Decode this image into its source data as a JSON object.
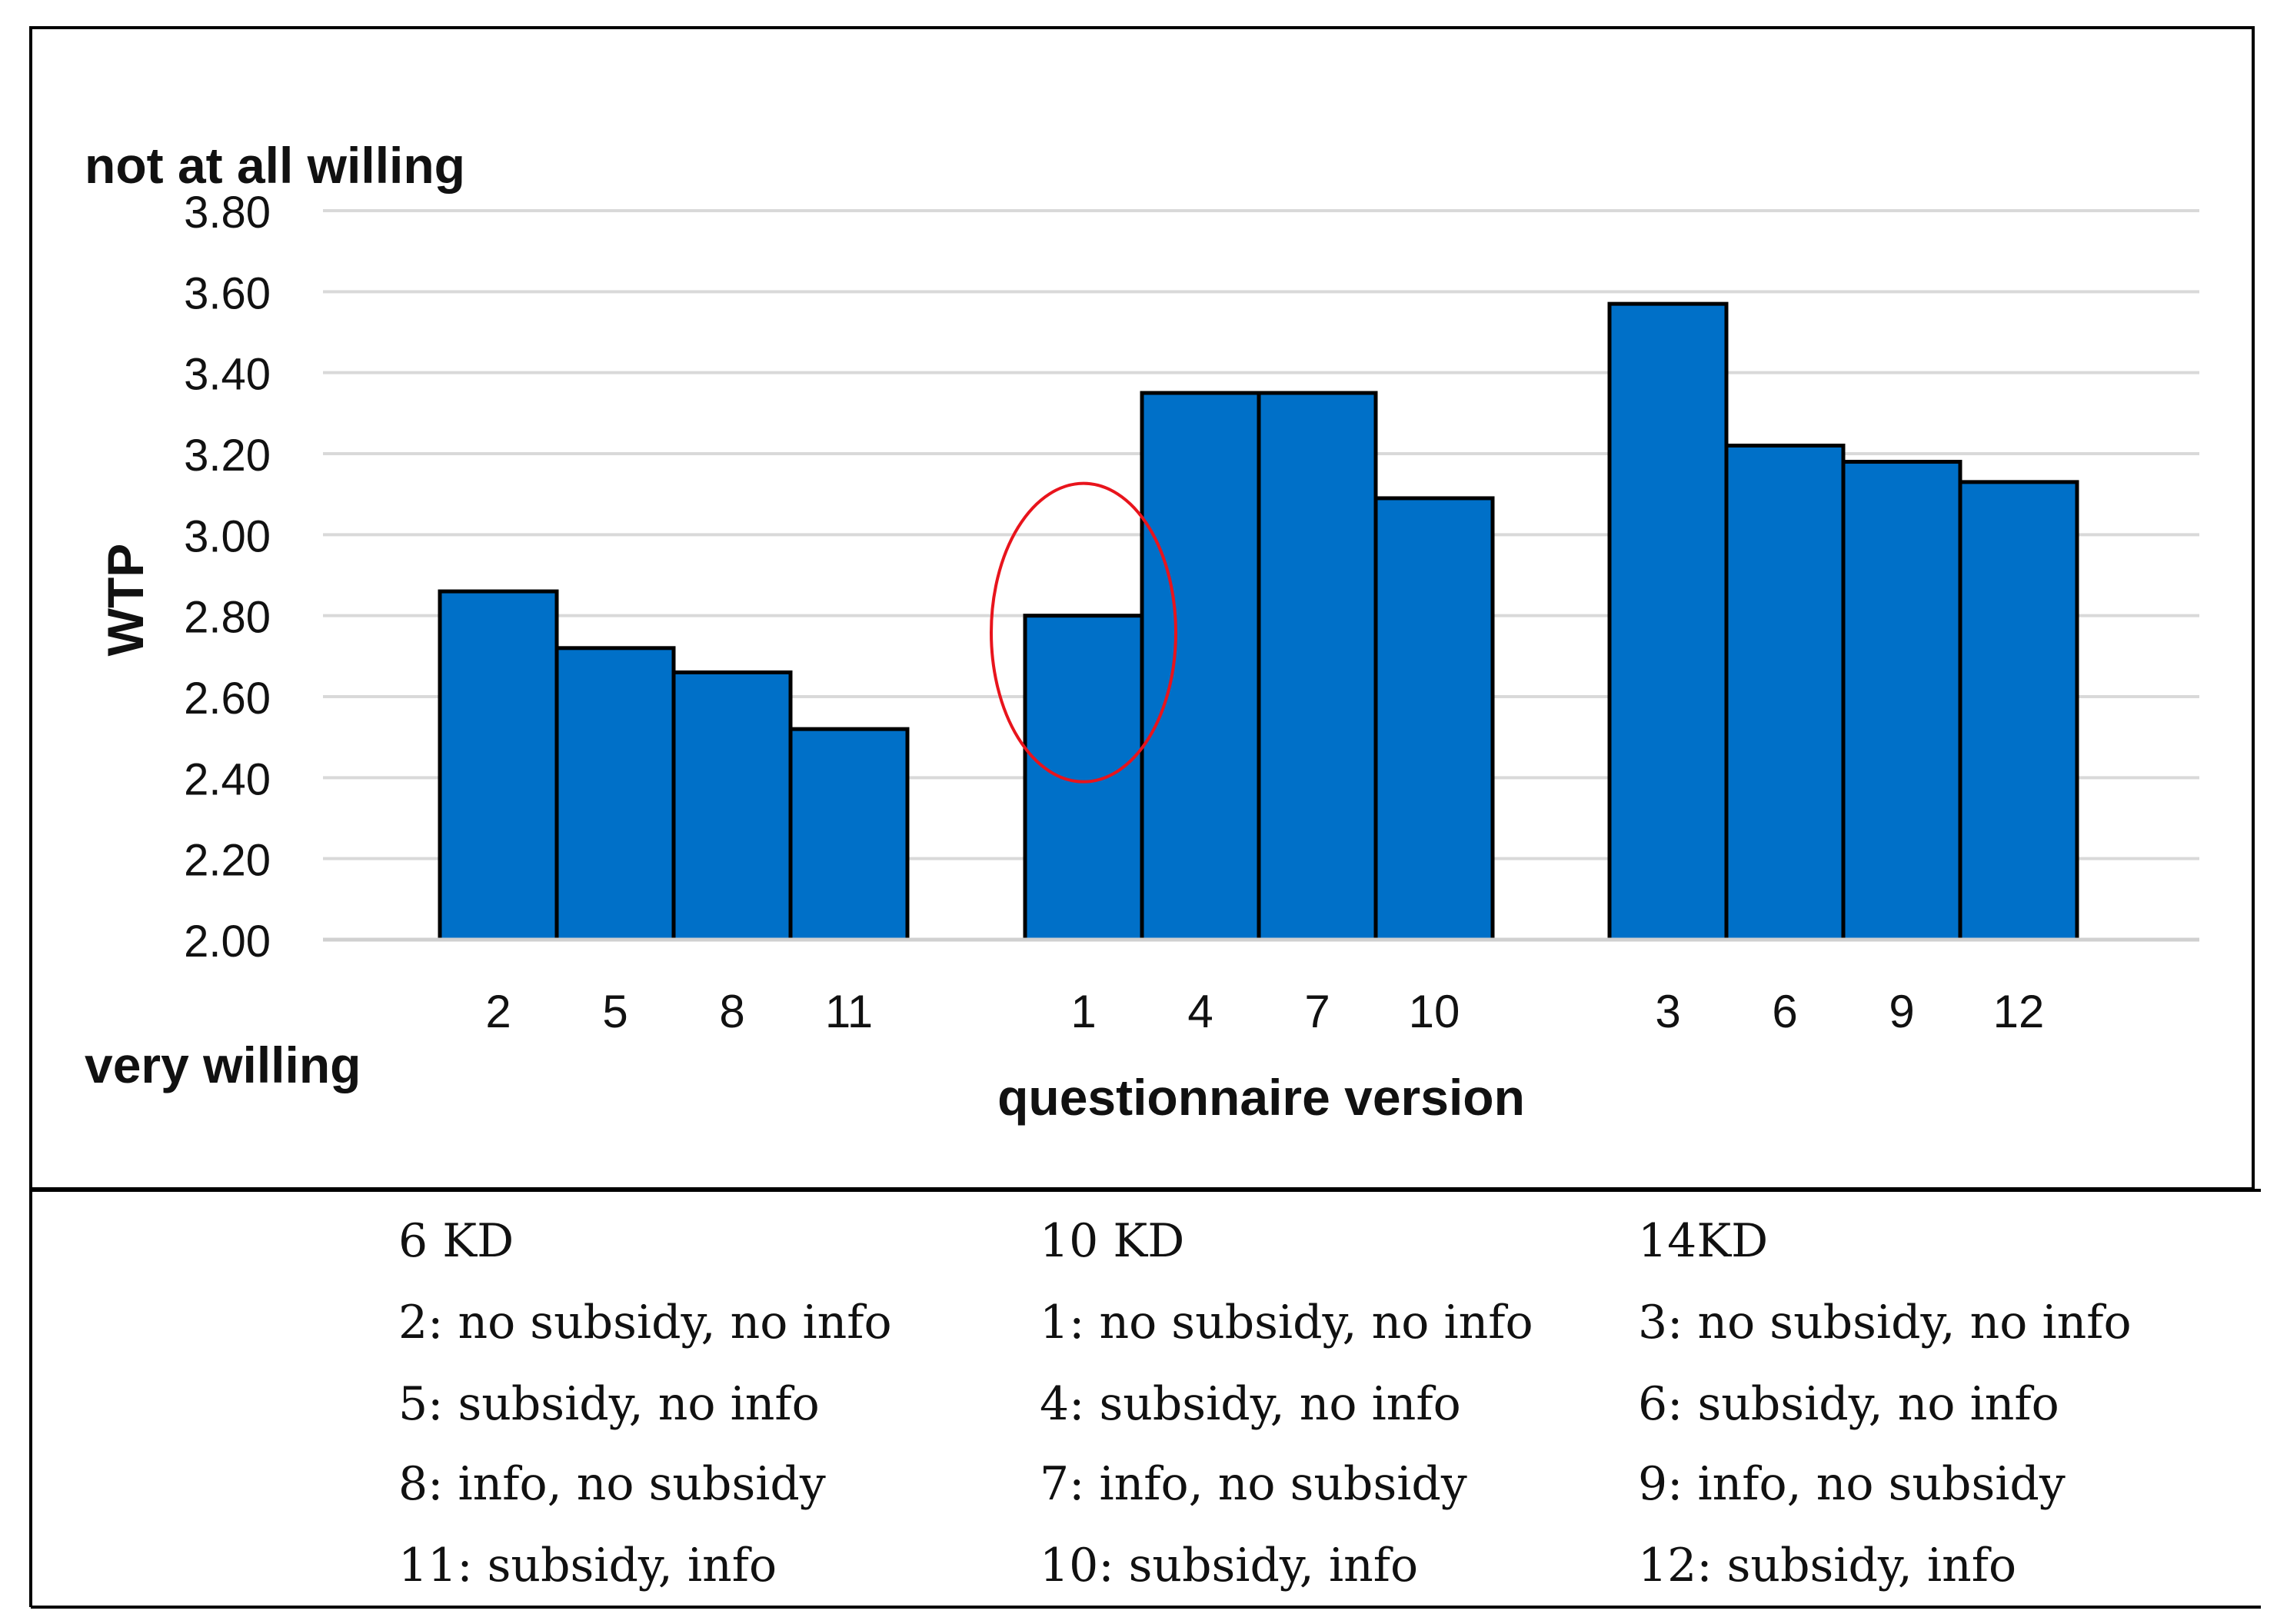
{
  "colors": {
    "bar_fill": "#0070c8",
    "bar_stroke": "#000000",
    "gridline": "#d9d9d9",
    "highlight_ellipse": "#e8141c"
  },
  "chart_data": {
    "type": "bar",
    "title": "",
    "xlabel": "questionnaire version",
    "ylabel": "WTP",
    "ylim": [
      2.0,
      3.8
    ],
    "y_ticks": [
      "2.00",
      "2.20",
      "2.40",
      "2.60",
      "2.80",
      "3.00",
      "3.20",
      "3.40",
      "3.60",
      "3.80"
    ],
    "y_top_annotation": "not at all willing",
    "y_bottom_annotation": "very willing",
    "grid": true,
    "highlighted_category": "1",
    "groups": [
      {
        "categories": [
          "2",
          "5",
          "8",
          "11"
        ],
        "values": [
          2.86,
          2.72,
          2.66,
          2.52
        ]
      },
      {
        "categories": [
          "1",
          "4",
          "7",
          "10"
        ],
        "values": [
          2.8,
          3.35,
          3.35,
          3.09
        ]
      },
      {
        "categories": [
          "3",
          "6",
          "9",
          "12"
        ],
        "values": [
          3.57,
          3.22,
          3.18,
          3.13
        ]
      }
    ]
  },
  "legend": {
    "columns": [
      {
        "heading": "6 KD",
        "items": [
          "2: no subsidy, no info",
          "5: subsidy, no info",
          "8: info, no subsidy",
          "11: subsidy, info"
        ]
      },
      {
        "heading": "10 KD",
        "items": [
          "1: no subsidy, no info",
          "4: subsidy, no info",
          "7: info, no subsidy",
          "10: subsidy, info"
        ]
      },
      {
        "heading": "14KD",
        "items": [
          "3: no subsidy, no info",
          "6: subsidy, no info",
          "9: info, no subsidy",
          "12: subsidy, info"
        ]
      }
    ]
  }
}
